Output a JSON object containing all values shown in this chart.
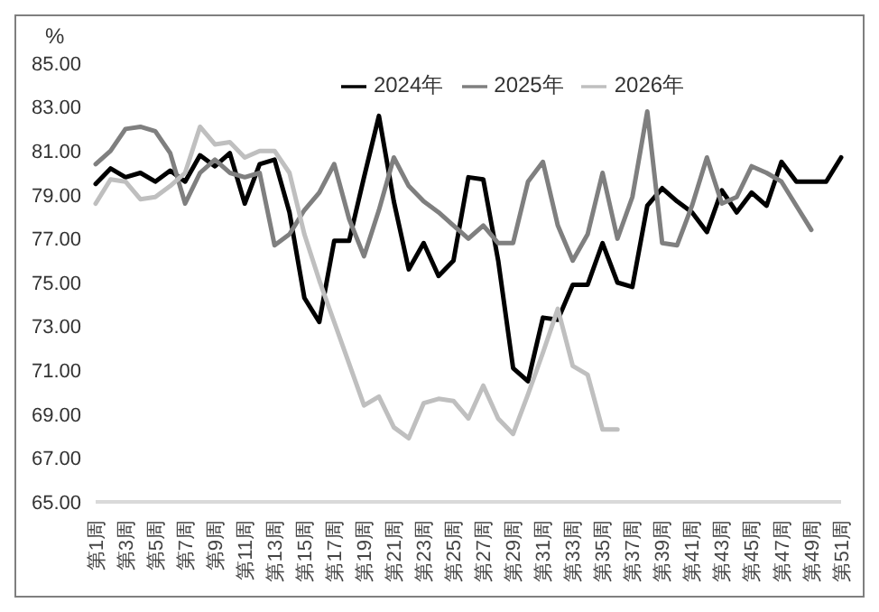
{
  "chart_data": {
    "type": "line",
    "ylabel": "%",
    "categories": [
      "第1周",
      null,
      "第3周",
      null,
      "第5周",
      null,
      "第7周",
      null,
      "第9周",
      null,
      "第11周",
      null,
      "第13周",
      null,
      "第15周",
      null,
      "第17周",
      null,
      "第19周",
      null,
      "第21周",
      null,
      "第23周",
      null,
      "第25周",
      null,
      "第27周",
      null,
      "第29周",
      null,
      "第31周",
      null,
      "第33周",
      null,
      "第35周",
      null,
      "第37周",
      null,
      "第39周",
      null,
      "第41周",
      null,
      "第43周",
      null,
      "第45周",
      null,
      "第47周",
      null,
      "第49周",
      null,
      "第51周"
    ],
    "series": [
      {
        "name": "2024年",
        "color": "#000000",
        "values": [
          79.5,
          80.2,
          79.8,
          80.0,
          79.6,
          80.1,
          79.6,
          80.8,
          80.3,
          80.9,
          78.6,
          80.4,
          80.6,
          78.2,
          74.3,
          73.2,
          76.9,
          76.9,
          79.8,
          82.6,
          78.7,
          75.6,
          76.8,
          75.3,
          76.0,
          79.8,
          79.7,
          76.0,
          71.1,
          70.5,
          73.4,
          73.3,
          74.9,
          74.9,
          76.8,
          75.0,
          74.8,
          78.5,
          79.3,
          78.7,
          78.2,
          77.3,
          79.2,
          78.2,
          79.1,
          78.5,
          80.5,
          79.6,
          79.6,
          79.6,
          80.7
        ]
      },
      {
        "name": "2025年",
        "color": "#7f7f7f",
        "values": [
          80.4,
          81.0,
          82.0,
          82.1,
          81.9,
          80.9,
          78.6,
          80.0,
          80.6,
          80.0,
          79.8,
          80.0,
          76.7,
          77.2,
          78.3,
          79.1,
          80.4,
          77.9,
          76.2,
          78.3,
          80.7,
          79.4,
          78.7,
          78.2,
          77.6,
          77.0,
          77.6,
          76.8,
          76.8,
          79.6,
          80.5,
          77.6,
          76.0,
          77.2,
          80.0,
          77.0,
          78.9,
          82.8,
          76.8,
          76.7,
          78.5,
          80.7,
          78.6,
          78.9,
          80.3,
          80.0,
          79.6,
          78.5,
          77.4,
          null,
          null
        ]
      },
      {
        "name": "2026年",
        "color": "#bfbfbf",
        "values": [
          78.6,
          79.7,
          79.6,
          78.8,
          78.9,
          79.4,
          80.0,
          82.1,
          81.3,
          81.4,
          80.7,
          81.0,
          81.0,
          80.0,
          77.2,
          75.1,
          73.2,
          71.3,
          69.4,
          69.8,
          68.4,
          67.9,
          69.5,
          69.7,
          69.6,
          68.8,
          70.3,
          68.8,
          68.1,
          69.9,
          71.8,
          73.8,
          71.2,
          70.8,
          68.3,
          68.3,
          null,
          null,
          null,
          null,
          null,
          null,
          null,
          null,
          null,
          null,
          null,
          null,
          null,
          null,
          null
        ]
      }
    ],
    "ylim": [
      65,
      85
    ],
    "yticks": [
      {
        "value": 65,
        "label": "65.00"
      },
      {
        "value": 67,
        "label": "67.00"
      },
      {
        "value": 69,
        "label": "69.00"
      },
      {
        "value": 71,
        "label": "71.00"
      },
      {
        "value": 73,
        "label": "73.00"
      },
      {
        "value": 75,
        "label": "75.00"
      },
      {
        "value": 77,
        "label": "77.00"
      },
      {
        "value": 79,
        "label": "79.00"
      },
      {
        "value": 81,
        "label": "81.00"
      },
      {
        "value": 83,
        "label": "83.00"
      },
      {
        "value": 85,
        "label": "85.00"
      }
    ],
    "grid": false,
    "legend": "top",
    "marker": "none",
    "line_style": "solid"
  }
}
